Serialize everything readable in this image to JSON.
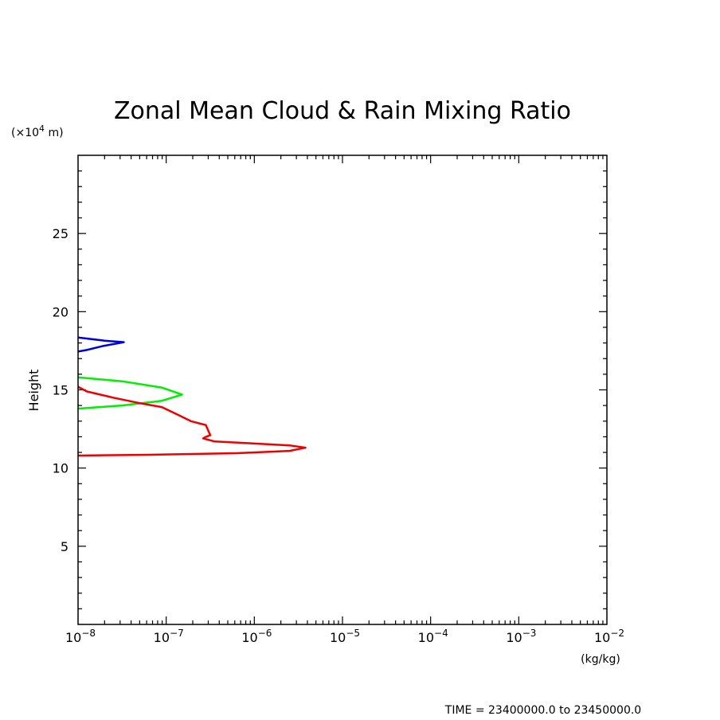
{
  "chart_data": {
    "type": "line",
    "title": "Zonal Mean Cloud & Rain Mixing Ratio",
    "ylabel": "Height",
    "yunit": "(×10",
    "yunit_exp": "4",
    "yunit_tail": " m)",
    "xunit": "(kg/kg)",
    "time_label": "TIME = 23400000.0 to 23450000.0",
    "xscale": "log",
    "xlim_exp": [
      -8,
      -2
    ],
    "ylim": [
      0,
      30
    ],
    "x_tick_base": "10",
    "x_tick_exponents": [
      "−8",
      "−7",
      "−6",
      "−5",
      "−4",
      "−3",
      "−2"
    ],
    "y_ticks": [
      5,
      10,
      15,
      20,
      25
    ],
    "y_tick_labels": [
      "5",
      "10",
      "15",
      "20",
      "25"
    ],
    "series": [
      {
        "name": "blue",
        "color": "#0000dd",
        "points": [
          [
            -8.0,
            18.35
          ],
          [
            -7.7,
            18.15
          ],
          [
            -7.48,
            18.05
          ],
          [
            -7.72,
            17.8
          ],
          [
            -7.9,
            17.55
          ],
          [
            -8.0,
            17.45
          ]
        ]
      },
      {
        "name": "green",
        "color": "#00ee00",
        "points": [
          [
            -8.0,
            15.8
          ],
          [
            -7.5,
            15.55
          ],
          [
            -7.05,
            15.15
          ],
          [
            -6.82,
            14.7
          ],
          [
            -7.05,
            14.3
          ],
          [
            -7.5,
            14.0
          ],
          [
            -8.0,
            13.8
          ]
        ]
      },
      {
        "name": "red",
        "color": "#ee0000",
        "points": [
          [
            -8.0,
            15.2
          ],
          [
            -7.9,
            14.9
          ],
          [
            -7.6,
            14.5
          ],
          [
            -7.3,
            14.15
          ],
          [
            -7.05,
            13.9
          ],
          [
            -6.9,
            13.5
          ],
          [
            -6.72,
            13.0
          ],
          [
            -6.55,
            12.75
          ],
          [
            -6.52,
            12.35
          ],
          [
            -6.5,
            12.1
          ],
          [
            -6.55,
            12.0
          ],
          [
            -6.58,
            11.9
          ],
          [
            -6.45,
            11.7
          ],
          [
            -6.1,
            11.6
          ],
          [
            -5.6,
            11.45
          ],
          [
            -5.42,
            11.3
          ],
          [
            -5.6,
            11.1
          ],
          [
            -6.2,
            10.95
          ],
          [
            -7.2,
            10.85
          ],
          [
            -8.0,
            10.8
          ]
        ]
      }
    ]
  }
}
